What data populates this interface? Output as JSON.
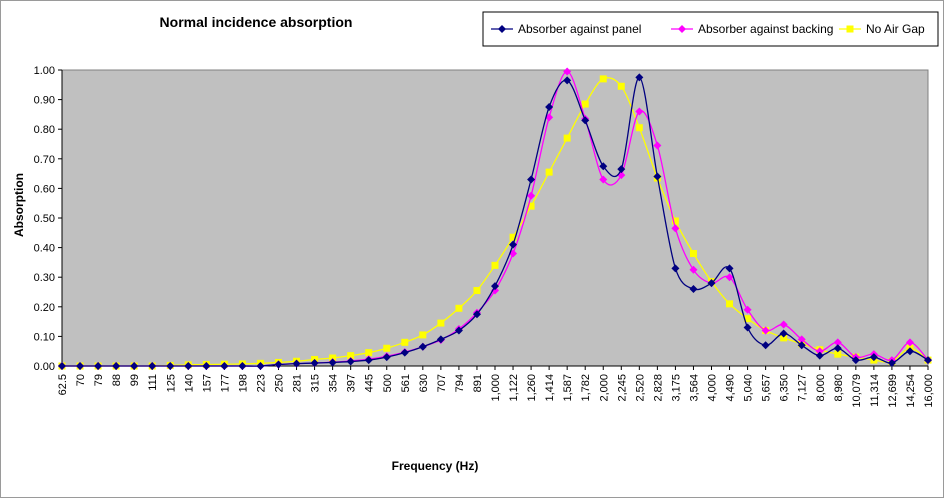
{
  "chart_data": {
    "type": "line",
    "title": "Normal incidence absorption",
    "xlabel": "Frequency (Hz)",
    "ylabel": "Absorption",
    "ylim": [
      0,
      1
    ],
    "yticks": [
      "0.00",
      "0.10",
      "0.20",
      "0.30",
      "0.40",
      "0.50",
      "0.60",
      "0.70",
      "0.80",
      "0.90",
      "1.00"
    ],
    "grid": false,
    "legend_position": "top-right",
    "plot_background": "#c0c0c0",
    "categories": [
      "62.5",
      "70",
      "79",
      "88",
      "99",
      "111",
      "125",
      "140",
      "157",
      "177",
      "198",
      "223",
      "250",
      "281",
      "315",
      "354",
      "397",
      "445",
      "500",
      "561",
      "630",
      "707",
      "794",
      "891",
      "1,000",
      "1,122",
      "1,260",
      "1,414",
      "1,587",
      "1,782",
      "2,000",
      "2,245",
      "2,520",
      "2,828",
      "3,175",
      "3,564",
      "4,000",
      "4,490",
      "5,040",
      "5,657",
      "6,350",
      "7,127",
      "8,000",
      "8,980",
      "10,079",
      "11,314",
      "12,699",
      "14,254",
      "16,000"
    ],
    "series": [
      {
        "name": "Absorber against panel",
        "color": "#000080",
        "marker": "diamond",
        "values": [
          0.0,
          0.0,
          0.0,
          0.0,
          0.0,
          0.0,
          0.0,
          0.0,
          0.0,
          0.0,
          0.0,
          0.0,
          0.005,
          0.008,
          0.01,
          0.012,
          0.015,
          0.02,
          0.03,
          0.045,
          0.065,
          0.09,
          0.12,
          0.175,
          0.27,
          0.41,
          0.63,
          0.875,
          0.965,
          0.83,
          0.675,
          0.665,
          0.975,
          0.64,
          0.33,
          0.26,
          0.28,
          0.33,
          0.13,
          0.07,
          0.11,
          0.07,
          0.035,
          0.06,
          0.02,
          0.03,
          0.01,
          0.05,
          0.02
        ]
      },
      {
        "name": "Absorber against backing",
        "color": "#ff00ff",
        "marker": "diamond",
        "values": [
          0.0,
          0.0,
          0.0,
          0.0,
          0.0,
          0.0,
          0.0,
          0.0,
          0.0,
          0.0,
          0.0,
          0.0,
          0.005,
          0.008,
          0.01,
          0.013,
          0.017,
          0.023,
          0.033,
          0.047,
          0.065,
          0.088,
          0.125,
          0.18,
          0.255,
          0.38,
          0.575,
          0.84,
          0.995,
          0.835,
          0.63,
          0.645,
          0.86,
          0.745,
          0.465,
          0.325,
          0.28,
          0.3,
          0.19,
          0.12,
          0.14,
          0.09,
          0.05,
          0.08,
          0.03,
          0.04,
          0.02,
          0.08,
          0.02
        ]
      },
      {
        "name": "No Air Gap",
        "color": "#ffff00",
        "marker": "square",
        "values": [
          0.0,
          0.0,
          0.0,
          0.0,
          0.0,
          0.0,
          0.002,
          0.004,
          0.005,
          0.006,
          0.007,
          0.009,
          0.012,
          0.016,
          0.022,
          0.027,
          0.035,
          0.045,
          0.06,
          0.08,
          0.105,
          0.145,
          0.195,
          0.255,
          0.34,
          0.435,
          0.54,
          0.655,
          0.77,
          0.885,
          0.97,
          0.945,
          0.805,
          0.635,
          0.49,
          0.38,
          0.285,
          0.21,
          0.16,
          0.12,
          0.095,
          0.075,
          0.055,
          0.04,
          0.03,
          0.02,
          0.015,
          0.06,
          0.02
        ]
      }
    ]
  }
}
